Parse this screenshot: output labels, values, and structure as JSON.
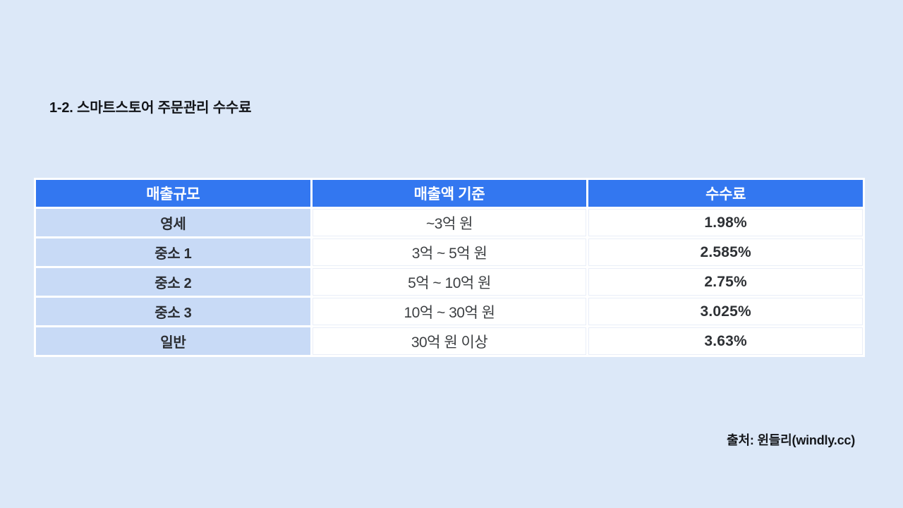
{
  "page": {
    "title": "1-2. 스마트스토어 주문관리 수수료",
    "source": "출처: 윈들리(windly.cc)"
  },
  "colors": {
    "page_background": "#dce8f8",
    "table_header_bg": "#3377f0",
    "table_header_text": "#ffffff",
    "scale_column_bg": "#c8daf6",
    "body_cell_bg": "#ffffff",
    "dark_text": "#2e3135"
  },
  "table": {
    "columns": [
      "매출규모",
      "매출액 기준",
      "수수료"
    ],
    "rows": [
      {
        "scale": "영세",
        "basis": "~3억 원",
        "fee": "1.98%"
      },
      {
        "scale": "중소 1",
        "basis": "3억 ~ 5억 원",
        "fee": "2.585%"
      },
      {
        "scale": "중소 2",
        "basis": "5억 ~ 10억 원",
        "fee": "2.75%"
      },
      {
        "scale": "중소 3",
        "basis": "10억 ~ 30억 원",
        "fee": "3.025%"
      },
      {
        "scale": "일반",
        "basis": "30억 원 이상",
        "fee": "3.63%"
      }
    ]
  }
}
